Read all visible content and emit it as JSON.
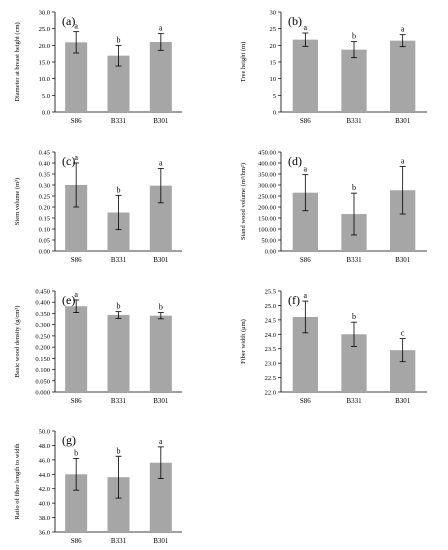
{
  "chart_data": [
    {
      "type": "bar",
      "panel_label": "(a)",
      "categories": [
        "S86",
        "B331",
        "B301"
      ],
      "values": [
        20.9,
        16.9,
        21.0
      ],
      "errors": [
        3.2,
        3.1,
        2.5
      ],
      "letters": [
        "a",
        "b",
        "a"
      ],
      "ylabel": "Diameter at breast height (cm)",
      "ylim": [
        0,
        30
      ],
      "yticks": [
        "0.0",
        "5.0",
        "10.0",
        "15.0",
        "20.0",
        "25.0",
        "30.0"
      ],
      "grid": false,
      "bar_color": "#a6a6a6"
    },
    {
      "type": "bar",
      "panel_label": "(b)",
      "categories": [
        "S86",
        "B331",
        "B301"
      ],
      "values": [
        21.7,
        18.7,
        21.4
      ],
      "errors": [
        2.0,
        2.4,
        1.8
      ],
      "letters": [
        "a",
        "b",
        "a"
      ],
      "ylabel": "Tree height (m)",
      "ylim": [
        0,
        30
      ],
      "yticks": [
        "0",
        "5",
        "10",
        "15",
        "20",
        "25",
        "30"
      ],
      "grid": false,
      "bar_color": "#a6a6a6"
    },
    {
      "type": "bar",
      "panel_label": "(c)",
      "categories": [
        "S86",
        "B331",
        "B301"
      ],
      "values": [
        0.3,
        0.175,
        0.297
      ],
      "errors": [
        0.1,
        0.078,
        0.078
      ],
      "letters": [
        "a",
        "b",
        "a"
      ],
      "ylabel": "Stem volume (m³)",
      "ylim": [
        0,
        0.45
      ],
      "yticks": [
        "0.00",
        "0.05",
        "0.10",
        "0.15",
        "0.20",
        "0.25",
        "0.30",
        "0.35",
        "0.40",
        "0.45"
      ],
      "grid": false,
      "bar_color": "#a6a6a6"
    },
    {
      "type": "bar",
      "panel_label": "(d)",
      "categories": [
        "S86",
        "B331",
        "B301"
      ],
      "values": [
        265,
        168,
        276
      ],
      "errors": [
        82,
        95,
        108
      ],
      "letters": [
        "a",
        "b",
        "a"
      ],
      "ylabel": "Stand wood volume (m³/hm²)",
      "ylim": [
        0,
        450
      ],
      "yticks": [
        "0.00",
        "50.00",
        "100.00",
        "150.00",
        "200.00",
        "250.00",
        "300.00",
        "350.00",
        "400.00",
        "450.00"
      ],
      "grid": false,
      "bar_color": "#a6a6a6"
    },
    {
      "type": "bar",
      "panel_label": "(e)",
      "categories": [
        "S86",
        "B331",
        "B301"
      ],
      "values": [
        0.382,
        0.343,
        0.34
      ],
      "errors": [
        0.028,
        0.015,
        0.014
      ],
      "letters": [
        "a",
        "b",
        "b"
      ],
      "ylabel": "Basic wood density (g/cm³)",
      "ylim": [
        0,
        0.45
      ],
      "yticks": [
        "0.000",
        "0.050",
        "0.100",
        "0.150",
        "0.200",
        "0.250",
        "0.300",
        "0.350",
        "0.400",
        "0.450"
      ],
      "grid": false,
      "bar_color": "#a6a6a6"
    },
    {
      "type": "bar",
      "panel_label": "(f)",
      "categories": [
        "S86",
        "B331",
        "B301"
      ],
      "values": [
        24.6,
        24.0,
        23.45
      ],
      "errors": [
        0.55,
        0.42,
        0.4
      ],
      "letters": [
        "a",
        "b",
        "c"
      ],
      "ylabel": "Fiber width (μm)",
      "ylim": [
        22,
        25.5
      ],
      "yticks": [
        "22.0",
        "22.5",
        "23.0",
        "23.5",
        "24.0",
        "24.5",
        "25.0",
        "25.5"
      ],
      "grid": false,
      "bar_color": "#a6a6a6"
    },
    {
      "type": "bar",
      "panel_label": "(g)",
      "categories": [
        "S86",
        "B331",
        "B301"
      ],
      "values": [
        44.0,
        43.6,
        45.6
      ],
      "errors": [
        2.2,
        2.9,
        2.2
      ],
      "letters": [
        "b",
        "b",
        "a"
      ],
      "ylabel": "Ratio of fiber length to width",
      "ylim": [
        36,
        50
      ],
      "yticks": [
        "36.0",
        "38.0",
        "40.0",
        "42.0",
        "44.0",
        "46.0",
        "48.0",
        "50.0"
      ],
      "grid": false,
      "bar_color": "#a6a6a6"
    }
  ]
}
